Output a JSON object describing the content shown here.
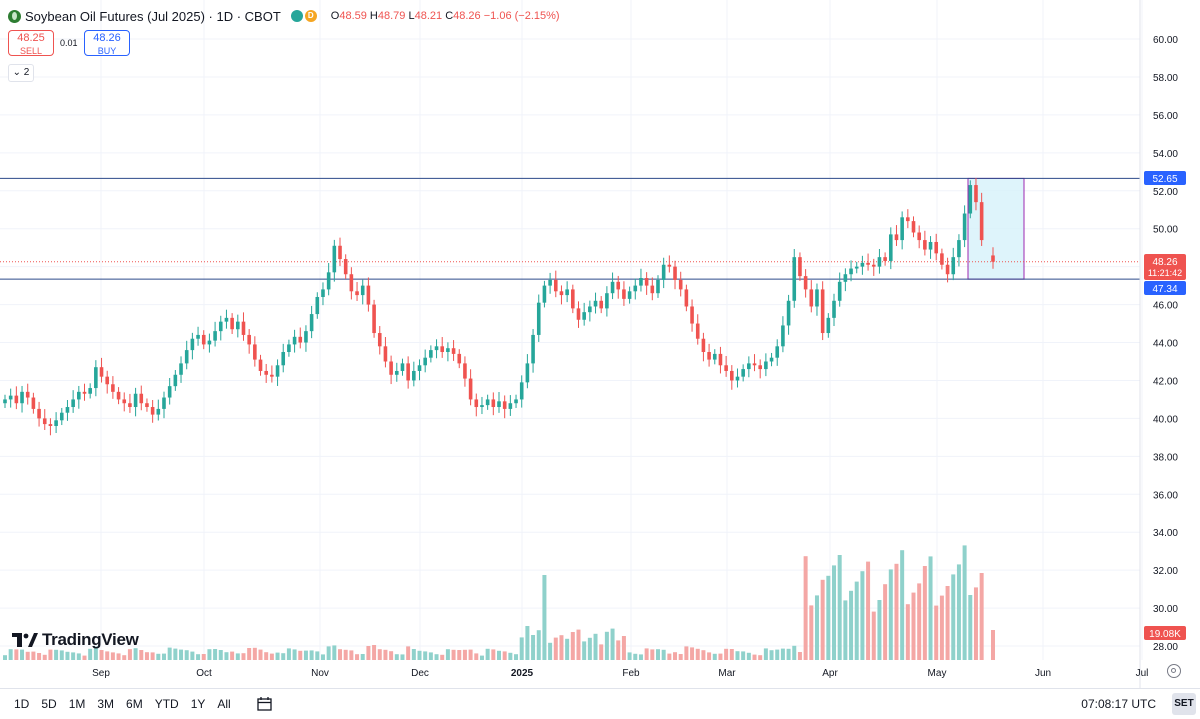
{
  "header": {
    "title": "Soybean Oil Futures (Jul 2025) · 1D · CBOT",
    "interval_badge": "D",
    "ohlc": {
      "o_label": "O",
      "o": "48.59",
      "h_label": "H",
      "h": "48.79",
      "l_label": "L",
      "l": "48.21",
      "c_label": "C",
      "c": "48.26",
      "change": "−1.06 (−2.15%)"
    }
  },
  "trade": {
    "sell_price": "48.25",
    "sell_label": "SELL",
    "spread": "0.01",
    "buy_price": "48.26",
    "buy_label": "BUY"
  },
  "indicators_toggle": "2",
  "logo": "TradingView",
  "price_labels": {
    "upper_line": "52.65",
    "last_price": "48.26",
    "countdown": "11:21:42",
    "lower_line": "47.34",
    "volume": "19.08K"
  },
  "bottom_bar": {
    "ranges": [
      "1D",
      "5D",
      "1M",
      "3M",
      "6M",
      "YTD",
      "1Y",
      "All"
    ],
    "clock": "07:08:17 UTC",
    "set_label": "SET"
  },
  "colors": {
    "up": "#26a69a",
    "down": "#ef5350",
    "vol_up": "#8fd1cb",
    "vol_down": "#f4a7a5",
    "line": "#2c4a8a",
    "label_blue": "#2962ff",
    "rect_fill": "#d6f1fa",
    "rect_border": "#9c27b0"
  },
  "chart_data": {
    "type": "candlestick",
    "y_ticks": [
      "60.00",
      "58.00",
      "56.00",
      "54.00",
      "52.00",
      "50.00",
      "48.00",
      "46.00",
      "44.00",
      "42.00",
      "40.00",
      "38.00",
      "36.00",
      "34.00",
      "32.00",
      "30.00",
      "28.00"
    ],
    "x_ticks": [
      "Sep",
      "Oct",
      "Nov",
      "Dec",
      "2025",
      "Feb",
      "Mar",
      "Apr",
      "May",
      "Jun",
      "Jul"
    ],
    "ylim": [
      27.2,
      61.0
    ],
    "horizontal_lines": [
      52.65,
      47.34
    ],
    "last_price": 48.26,
    "close_series": [
      41.0,
      41.2,
      40.8,
      41.4,
      41.1,
      40.5,
      40.0,
      39.7,
      39.6,
      39.9,
      40.3,
      40.6,
      41.0,
      41.4,
      41.3,
      41.6,
      42.7,
      42.2,
      41.8,
      41.4,
      41.0,
      40.8,
      40.6,
      41.3,
      40.8,
      40.6,
      40.2,
      40.5,
      41.1,
      41.7,
      42.3,
      42.9,
      43.6,
      44.2,
      44.4,
      43.9,
      44.1,
      44.6,
      45.1,
      45.3,
      44.7,
      45.1,
      44.4,
      43.9,
      43.1,
      42.5,
      42.3,
      42.2,
      42.8,
      43.5,
      43.9,
      44.3,
      44.0,
      44.6,
      45.5,
      46.4,
      46.8,
      47.7,
      49.1,
      48.4,
      47.6,
      46.7,
      46.5,
      47.0,
      46.0,
      44.5,
      43.8,
      43.0,
      42.3,
      42.5,
      42.9,
      42.0,
      42.5,
      42.8,
      43.2,
      43.6,
      43.8,
      43.5,
      43.7,
      43.4,
      42.9,
      42.1,
      41.0,
      40.6,
      40.7,
      41.0,
      40.6,
      40.9,
      40.5,
      40.8,
      41.0,
      41.9,
      42.9,
      44.4,
      46.1,
      47.0,
      47.3,
      46.7,
      46.5,
      46.8,
      45.8,
      45.2,
      45.6,
      45.9,
      46.2,
      45.8,
      46.6,
      47.2,
      46.8,
      46.3,
      46.7,
      47.0,
      47.4,
      47.0,
      46.6,
      47.3,
      48.1,
      48.0,
      47.3,
      46.8,
      45.9,
      45.0,
      44.2,
      43.5,
      43.1,
      43.4,
      42.8,
      42.5,
      42.0,
      42.2,
      42.6,
      42.9,
      42.8,
      42.6,
      43.0,
      43.2,
      43.8,
      44.9,
      46.2,
      48.5,
      47.5,
      46.8,
      45.9,
      46.8,
      44.5,
      45.3,
      46.2,
      47.2,
      47.6,
      47.9,
      48.0,
      48.2,
      48.1,
      48.0,
      48.5,
      48.3,
      49.7,
      49.4,
      50.6,
      50.4,
      49.8,
      49.4,
      48.9,
      49.3,
      48.7,
      48.1,
      47.6,
      48.5,
      49.4,
      50.8,
      52.3,
      51.4,
      49.4,
      null,
      48.26
    ]
  }
}
